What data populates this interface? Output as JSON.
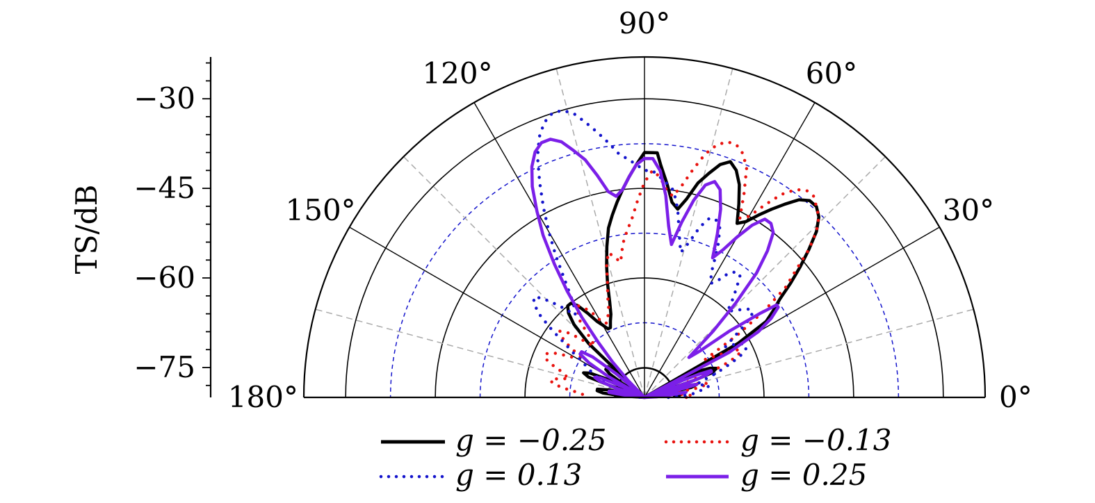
{
  "chart_data": {
    "type": "polar-line",
    "ylabel": "TS/dB",
    "r_ticks": [
      -30,
      -45,
      -60,
      -75
    ],
    "r_tick_labels": [
      "−30",
      "−45",
      "−60",
      "−75"
    ],
    "r_range": [
      -80,
      -23
    ],
    "theta_range": [
      0,
      180
    ],
    "theta_ticks": [
      0,
      30,
      60,
      90,
      120,
      150,
      180
    ],
    "theta_tick_labels": [
      "0°",
      "30°",
      "60°",
      "90°",
      "120°",
      "150°",
      "180°"
    ],
    "grid": true,
    "legend_position": "bottom",
    "colors": {
      "black": "#000000",
      "red": "#e8130f",
      "blue": "#1414cc",
      "purple": "#7b1fe8",
      "grid_gray": "#aaaaaa",
      "grid_blue": "#1414cc"
    },
    "series": [
      {
        "name": "g = −0.25",
        "legend_label": "g = −0.25",
        "color": "#000000",
        "style": "solid",
        "theta": [
          2,
          4,
          6,
          8,
          10,
          11,
          12,
          14,
          15,
          16,
          18,
          19,
          20,
          22,
          24,
          26,
          28,
          30,
          32,
          34,
          36,
          38,
          40,
          42,
          44,
          46,
          48,
          50,
          52,
          54,
          56,
          58,
          60,
          62,
          64,
          66,
          68,
          70,
          72,
          74,
          76,
          78,
          80,
          82,
          84,
          86,
          87,
          88,
          90,
          92,
          94,
          96,
          98,
          100,
          102,
          104,
          106,
          108,
          110,
          112,
          114,
          116,
          118,
          120,
          122,
          124,
          126,
          128,
          130,
          132,
          134,
          136,
          138,
          140,
          142,
          144,
          146,
          148,
          150,
          152,
          154,
          156,
          158,
          160,
          161,
          162,
          163,
          164,
          166,
          168,
          170,
          172,
          174,
          176,
          177,
          178,
          180
        ],
        "r": [
          -75,
          -74,
          -74,
          -75,
          -80,
          -76,
          -72,
          -71,
          -72,
          -80,
          -78,
          -71,
          -68,
          -67,
          -68,
          -70,
          -80,
          -62,
          -56,
          -54,
          -52,
          -49,
          -46,
          -43,
          -40,
          -38,
          -37,
          -37,
          -38,
          -40,
          -42,
          -44,
          -46,
          -47,
          -44,
          -41,
          -39,
          -38,
          -39,
          -41,
          -43,
          -46,
          -48,
          -47,
          -44,
          -41,
          -39,
          -39,
          -39,
          -41,
          -43,
          -45,
          -47,
          -49,
          -51,
          -54,
          -57,
          -60,
          -63,
          -65,
          -66,
          -67,
          -67,
          -66,
          -65,
          -63,
          -61,
          -60,
          -60,
          -61,
          -63,
          -67,
          -80,
          -72,
          -72,
          -72,
          -73,
          -76,
          -80,
          -80,
          -73,
          -70,
          -69,
          -70,
          -74,
          -80,
          -80,
          -80,
          -80,
          -74,
          -72,
          -72,
          -73,
          -76,
          -80,
          -80,
          -80
        ]
      },
      {
        "name": "g = −0.13",
        "legend_label": "g = −0.13",
        "color": "#e8130f",
        "style": "dotted",
        "theta": [
          0,
          2,
          4,
          6,
          8,
          10,
          12,
          14,
          16,
          18,
          20,
          22,
          24,
          26,
          28,
          30,
          32,
          34,
          36,
          38,
          40,
          42,
          44,
          46,
          48,
          50,
          52,
          54,
          56,
          58,
          60,
          62,
          64,
          66,
          68,
          70,
          72,
          74,
          76,
          78,
          80,
          82,
          84,
          86,
          88,
          90,
          92,
          94,
          96,
          98,
          100,
          102,
          104,
          106,
          108,
          110,
          112,
          114,
          116,
          118,
          120,
          122,
          124,
          126,
          128,
          130,
          132,
          134,
          136,
          138,
          140,
          142,
          144,
          146,
          148,
          150,
          152,
          154,
          156,
          158,
          160,
          162,
          164,
          166,
          168,
          170,
          172,
          174,
          176,
          178,
          180
        ],
        "r": [
          -73,
          -72,
          -73,
          -75,
          -76,
          -71,
          -69,
          -70,
          -72,
          -75,
          -71,
          -66,
          -63,
          -62,
          -63,
          -66,
          -68,
          -61,
          -55,
          -50,
          -47,
          -43,
          -40,
          -38,
          -37,
          -36,
          -36,
          -37,
          -39,
          -42,
          -45,
          -46,
          -42,
          -38,
          -36,
          -35,
          -35,
          -36,
          -38,
          -41,
          -44,
          -46,
          -45,
          -43,
          -42,
          -44,
          -47,
          -50,
          -52,
          -54,
          -57,
          -56,
          -55,
          -57,
          -60,
          -62,
          -64,
          -65,
          -66,
          -66,
          -65,
          -63,
          -62,
          -61,
          -62,
          -63,
          -66,
          -68,
          -67,
          -65,
          -63,
          -62,
          -63,
          -65,
          -68,
          -67,
          -65,
          -63,
          -62,
          -62,
          -63,
          -65,
          -66,
          -67,
          -65,
          -64,
          -65,
          -67,
          -69,
          -70,
          -70
        ]
      },
      {
        "name": "g = 0.13",
        "legend_label": "g = 0.13",
        "color": "#1414cc",
        "style": "dotted",
        "theta": [
          0,
          2,
          4,
          6,
          8,
          10,
          12,
          14,
          16,
          18,
          20,
          22,
          24,
          26,
          28,
          30,
          32,
          34,
          36,
          38,
          40,
          42,
          44,
          46,
          48,
          50,
          52,
          54,
          56,
          58,
          60,
          62,
          64,
          66,
          68,
          70,
          72,
          74,
          76,
          78,
          80,
          82,
          84,
          86,
          88,
          90,
          92,
          94,
          96,
          98,
          100,
          102,
          104,
          106,
          108,
          110,
          112,
          114,
          116,
          118,
          120,
          122,
          124,
          126,
          128,
          130,
          132,
          134,
          136,
          138,
          140,
          142,
          144,
          146,
          148,
          150,
          152,
          154,
          156,
          158,
          160,
          162,
          164,
          166,
          168,
          170,
          172,
          174,
          176,
          178,
          180
        ],
        "r": [
          -76,
          -74,
          -72,
          -71,
          -70,
          -69,
          -70,
          -71,
          -70,
          -68,
          -66,
          -64,
          -62,
          -61,
          -61,
          -62,
          -64,
          -62,
          -59,
          -57,
          -57,
          -58,
          -59,
          -60,
          -58,
          -56,
          -54,
          -54,
          -55,
          -57,
          -58,
          -56,
          -52,
          -49,
          -48,
          -48,
          -50,
          -53,
          -55,
          -52,
          -48,
          -45,
          -44,
          -43,
          -42,
          -42,
          -41,
          -40,
          -39,
          -37,
          -35,
          -33,
          -31,
          -30,
          -30,
          -31,
          -33,
          -36,
          -40,
          -44,
          -48,
          -52,
          -56,
          -59,
          -61,
          -62,
          -60,
          -58,
          -56,
          -55,
          -56,
          -58,
          -61,
          -64,
          -66,
          -68,
          -69,
          -70,
          -71,
          -72,
          -73,
          -74,
          -75,
          -76,
          -76,
          -76,
          -77,
          -77,
          -78,
          -79,
          -80
        ]
      },
      {
        "name": "g = 0.25",
        "legend_label": "g = 0.25",
        "color": "#7b1fe8",
        "style": "solid",
        "theta": [
          1,
          3,
          5,
          7,
          9,
          11,
          13,
          14,
          15,
          16,
          17,
          18,
          19,
          20,
          21,
          22,
          23,
          24,
          25,
          26,
          28,
          30,
          32,
          34,
          35,
          36,
          38,
          40,
          42,
          44,
          46,
          48,
          50,
          52,
          54,
          56,
          58,
          60,
          62,
          64,
          66,
          68,
          70,
          72,
          74,
          76,
          78,
          80,
          82,
          84,
          86,
          88,
          90,
          92,
          94,
          96,
          98,
          100,
          102,
          104,
          106,
          108,
          110,
          112,
          114,
          116,
          118,
          120,
          122,
          124,
          126,
          128,
          130,
          132,
          134,
          136,
          138,
          140,
          142,
          144,
          146,
          148,
          150,
          152,
          154,
          156,
          158,
          160,
          162,
          164,
          166,
          168,
          170,
          172,
          174,
          176,
          178,
          180
        ],
        "r": [
          -80,
          -78,
          -76,
          -73,
          -80,
          -76,
          -73,
          -71,
          -72,
          -76,
          -80,
          -76,
          -71,
          -69,
          -68,
          -68,
          -70,
          -73,
          -80,
          -80,
          -64,
          -58,
          -55,
          -53,
          -53,
          -56,
          -62,
          -68,
          -70,
          -64,
          -58,
          -52,
          -48,
          -45,
          -44,
          -44,
          -46,
          -49,
          -52,
          -54,
          -50,
          -46,
          -43,
          -42,
          -43,
          -46,
          -50,
          -54,
          -51,
          -46,
          -42,
          -40,
          -40,
          -41,
          -43,
          -45,
          -46,
          -45,
          -42,
          -39,
          -37,
          -35,
          -34,
          -34,
          -35,
          -37,
          -40,
          -44,
          -48,
          -53,
          -58,
          -63,
          -68,
          -72,
          -76,
          -80,
          -80,
          -74,
          -69,
          -67,
          -67,
          -69,
          -73,
          -80,
          -76,
          -72,
          -71,
          -72,
          -75,
          -80,
          -80,
          -75,
          -74,
          -74,
          -77,
          -80,
          -80,
          -80
        ]
      }
    ]
  }
}
